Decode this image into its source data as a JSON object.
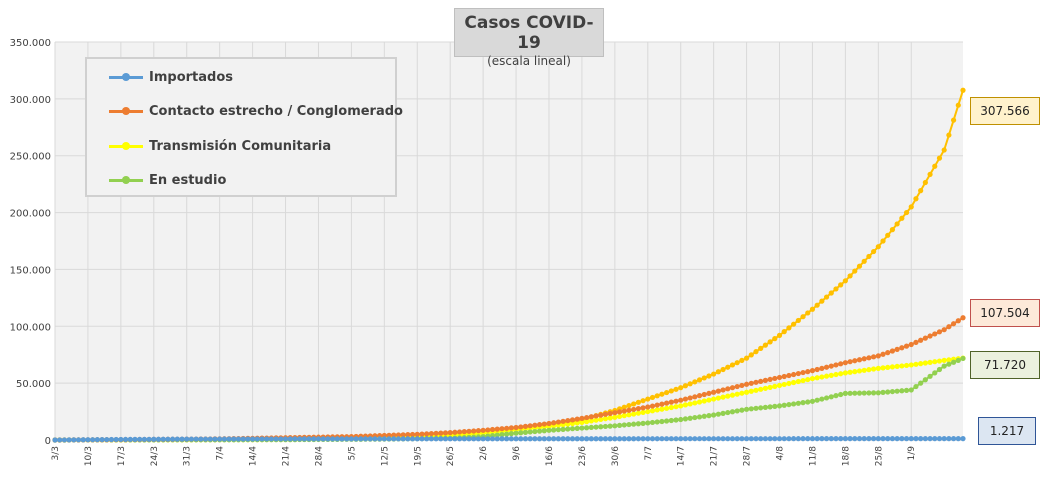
{
  "chart_data": {
    "type": "line",
    "title": "Casos COVID-19",
    "subtitle": "(escala lineal)",
    "xlabel": "",
    "ylabel": "",
    "ylim": [
      0,
      350000
    ],
    "yticks": [
      0,
      50000,
      100000,
      150000,
      200000,
      250000,
      300000,
      350000
    ],
    "ytick_labels": [
      "0",
      "50.000",
      "100.000",
      "150.000",
      "200.000",
      "250.000",
      "300.000",
      "350.000"
    ],
    "x_tick_labels": [
      "3/3",
      "10/3",
      "17/3",
      "24/3",
      "31/3",
      "7/4",
      "14/4",
      "21/4",
      "28/4",
      "5/5",
      "12/5",
      "19/5",
      "26/5",
      "2/6",
      "9/6",
      "16/6",
      "23/6",
      "30/6",
      "7/7",
      "14/7",
      "21/7",
      "28/7",
      "4/8",
      "11/8",
      "18/8",
      "25/8",
      "1/9"
    ],
    "x_tick_every_days": 7,
    "total_days": 193,
    "grid": true,
    "legend_position": "top-left",
    "series": [
      {
        "name": "Importados",
        "color": "#5b9bd5",
        "end_label": "1.217",
        "end_label_bg": "#dce6f2",
        "end_label_border": "#2f5597",
        "points": [
          [
            0,
            0
          ],
          [
            14,
            500
          ],
          [
            28,
            800
          ],
          [
            56,
            1000
          ],
          [
            84,
            1050
          ],
          [
            112,
            1100
          ],
          [
            140,
            1150
          ],
          [
            168,
            1190
          ],
          [
            193,
            1217
          ]
        ]
      },
      {
        "name": "Contacto estrecho / Conglomerado",
        "color": "#ed7d31",
        "end_label": "107.504",
        "end_label_bg": "#fde9d9",
        "end_label_border": "#c0504d",
        "points": [
          [
            0,
            0
          ],
          [
            14,
            300
          ],
          [
            35,
            1000
          ],
          [
            49,
            2000
          ],
          [
            63,
            3000
          ],
          [
            77,
            5000
          ],
          [
            84,
            6500
          ],
          [
            91,
            8500
          ],
          [
            98,
            11000
          ],
          [
            105,
            14500
          ],
          [
            112,
            19000
          ],
          [
            119,
            24000
          ],
          [
            126,
            29000
          ],
          [
            133,
            35000
          ],
          [
            140,
            42000
          ],
          [
            147,
            49000
          ],
          [
            154,
            55000
          ],
          [
            161,
            61000
          ],
          [
            168,
            68000
          ],
          [
            175,
            74000
          ],
          [
            182,
            84000
          ],
          [
            189,
            97000
          ],
          [
            193,
            107504
          ]
        ]
      },
      {
        "name": "Transmisión Comunitaria",
        "color": "#ffff00",
        "end_label": "",
        "end_label_bg": "",
        "end_label_border": "",
        "points": [
          [
            0,
            0
          ],
          [
            49,
            400
          ],
          [
            70,
            1500
          ],
          [
            84,
            4000
          ],
          [
            91,
            6000
          ],
          [
            98,
            9000
          ],
          [
            105,
            12000
          ],
          [
            112,
            15500
          ],
          [
            119,
            20000
          ],
          [
            126,
            25000
          ],
          [
            133,
            30000
          ],
          [
            140,
            36000
          ],
          [
            147,
            42000
          ],
          [
            154,
            48000
          ],
          [
            161,
            54000
          ],
          [
            168,
            59000
          ],
          [
            175,
            63000
          ],
          [
            182,
            66000
          ],
          [
            189,
            70000
          ],
          [
            193,
            72000
          ]
        ]
      },
      {
        "name": "En estudio",
        "color": "#92d050",
        "end_label": "71.720",
        "end_label_bg": "#ebf1de",
        "end_label_border": "#4f6228",
        "points": [
          [
            0,
            0
          ],
          [
            49,
            300
          ],
          [
            70,
            800
          ],
          [
            84,
            1500
          ],
          [
            91,
            3000
          ],
          [
            98,
            6000
          ],
          [
            105,
            8500
          ],
          [
            112,
            10500
          ],
          [
            119,
            12500
          ],
          [
            126,
            15000
          ],
          [
            133,
            18000
          ],
          [
            140,
            22000
          ],
          [
            147,
            27000
          ],
          [
            154,
            30000
          ],
          [
            161,
            34000
          ],
          [
            168,
            41000
          ],
          [
            175,
            41500
          ],
          [
            182,
            44000
          ],
          [
            189,
            65000
          ],
          [
            193,
            71720
          ]
        ]
      },
      {
        "name": "",
        "color": "#ffc000",
        "end_label": "307.566",
        "end_label_bg": "#fff2cc",
        "end_label_border": "#bf9000",
        "points": [
          [
            0,
            0
          ],
          [
            49,
            500
          ],
          [
            70,
            2000
          ],
          [
            84,
            4500
          ],
          [
            91,
            6500
          ],
          [
            98,
            9500
          ],
          [
            105,
            13000
          ],
          [
            112,
            18000
          ],
          [
            119,
            26000
          ],
          [
            126,
            36000
          ],
          [
            133,
            46000
          ],
          [
            140,
            58000
          ],
          [
            147,
            72000
          ],
          [
            154,
            92000
          ],
          [
            161,
            115000
          ],
          [
            168,
            140000
          ],
          [
            175,
            170000
          ],
          [
            182,
            205000
          ],
          [
            189,
            255000
          ],
          [
            193,
            307566
          ]
        ]
      }
    ]
  }
}
